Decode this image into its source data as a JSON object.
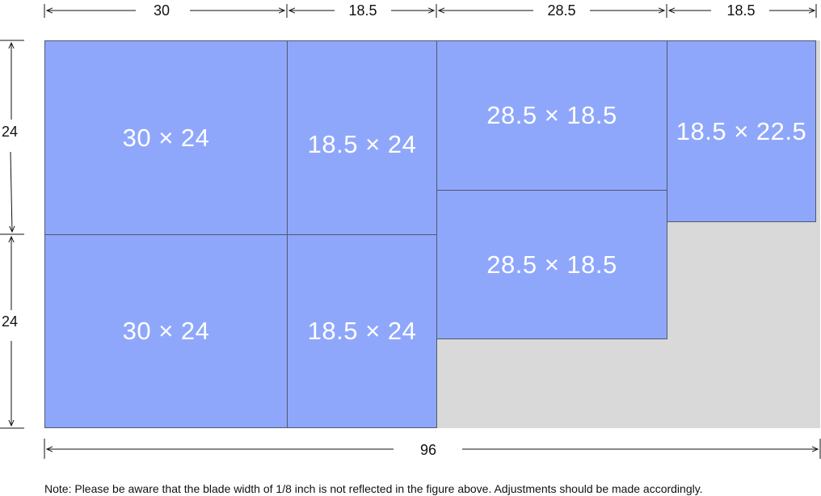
{
  "colors": {
    "piece_fill": "#8fa7fb",
    "piece_border": "#505870",
    "waste": "#d9d9d9",
    "text": "#111111"
  },
  "top_dimensions": [
    "30",
    "18.5",
    "28.5",
    "18.5"
  ],
  "left_dimensions": [
    "24",
    "24"
  ],
  "bottom_dimension": "96",
  "pieces": [
    "30 × 24",
    "30 × 24",
    "18.5 × 24",
    "18.5 × 24",
    "28.5 × 18.5",
    "28.5 × 18.5",
    "18.5 × 22.5"
  ],
  "note": "Note: Please be aware that the blade width of 1/8 inch is not reflected in the figure above. Adjustments should be made accordingly."
}
